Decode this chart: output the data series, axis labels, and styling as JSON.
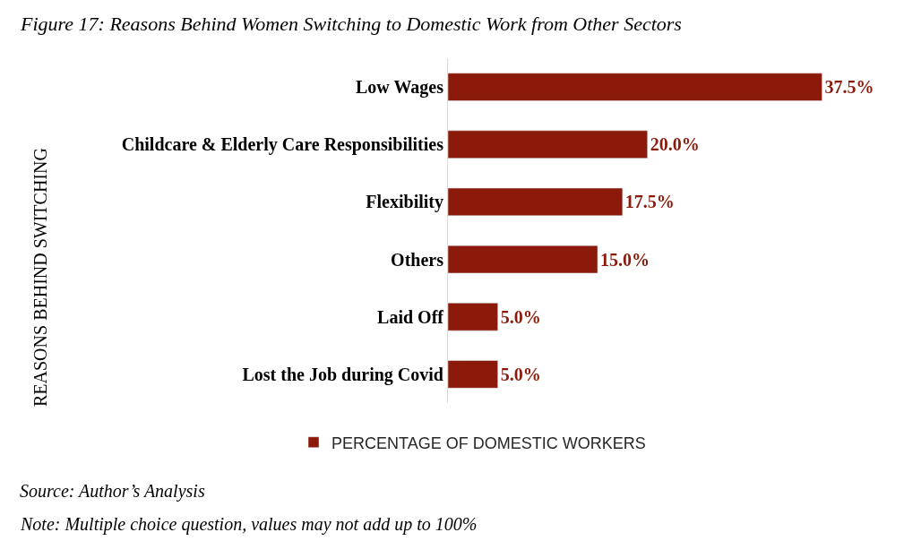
{
  "chart_data": {
    "type": "bar",
    "orientation": "horizontal",
    "title": "Figure 17: Reasons Behind Women Switching to Domestic Work from Other Sectors",
    "ylabel": "REASONS BEHIND SWITCHING",
    "categories": [
      "Low Wages",
      "Childcare & Elderly Care Responsibilities",
      "Flexibility",
      "Others",
      "Laid Off",
      "Lost the Job during Covid"
    ],
    "series": [
      {
        "name": "PERCENTAGE OF DOMESTIC WORKERS",
        "color": "#8b1a0b",
        "values": [
          37.5,
          20.0,
          17.5,
          15.0,
          5.0,
          5.0
        ],
        "value_labels": [
          "37.5%",
          "20.0%",
          "17.5%",
          "15.0%",
          "5.0%",
          "5.0%"
        ]
      }
    ],
    "legend": "bottom",
    "tick_labels": "y",
    "annotations": [
      "Source: Author’s Analysis",
      "Note: Multiple choice question, values may not add up to 100%"
    ]
  }
}
